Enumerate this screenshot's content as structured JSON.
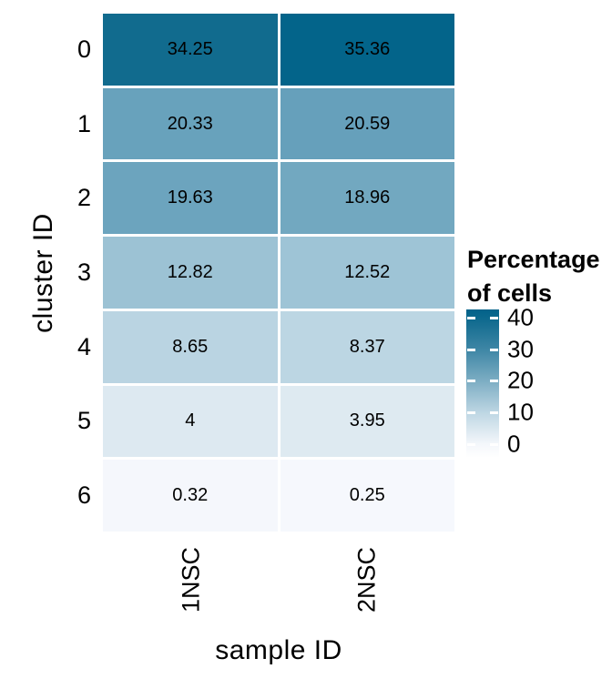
{
  "figure": {
    "background": "#ffffff",
    "text_color": "#000000"
  },
  "chart_data": {
    "type": "heatmap",
    "title": "",
    "xlabel": "sample ID",
    "ylabel": "cluster ID",
    "x_categories": [
      "1NSC",
      "2NSC"
    ],
    "y_categories": [
      "0",
      "1",
      "2",
      "3",
      "4",
      "5",
      "6"
    ],
    "series": [
      {
        "name": "1NSC",
        "values": [
          34.25,
          20.33,
          19.63,
          12.82,
          8.65,
          4,
          0.32
        ]
      },
      {
        "name": "2NSC",
        "values": [
          35.36,
          20.59,
          18.96,
          12.52,
          8.37,
          3.95,
          0.25
        ]
      }
    ],
    "cell_labels": [
      [
        "34.25",
        "35.36"
      ],
      [
        "20.33",
        "20.59"
      ],
      [
        "19.63",
        "18.96"
      ],
      [
        "12.82",
        "12.52"
      ],
      [
        "8.65",
        "8.37"
      ],
      [
        "4",
        "3.95"
      ],
      [
        "0.32",
        "0.25"
      ]
    ],
    "cell_colors": [
      [
        "#116b8e",
        "#03648a"
      ],
      [
        "#68a2bc",
        "#66a0bb"
      ],
      [
        "#6ca4be",
        "#72a8c0"
      ],
      [
        "#9cc2d4",
        "#9ec4d6"
      ],
      [
        "#bad4e2",
        "#bcd6e3"
      ],
      [
        "#dde9f1",
        "#deeaf1"
      ],
      [
        "#f5f7fc",
        "#f6f8fd"
      ]
    ],
    "value_range": [
      0,
      40
    ],
    "grid_lines": false,
    "legend": {
      "position": "right",
      "title_lines": [
        "Percentage",
        "of cells"
      ],
      "tick_labels": [
        "40",
        "30",
        "20",
        "10",
        "0"
      ],
      "gradient_low": "#ffffff",
      "gradient_high": "#02628a",
      "gradient_stops": [
        {
          "color": "#ffffff",
          "pos": 0
        },
        {
          "color": "#f4f7fb",
          "pos": 9.2
        },
        {
          "color": "#bdd6e3",
          "pos": 30.7
        },
        {
          "color": "#7cadc3",
          "pos": 52
        },
        {
          "color": "#3e86a5",
          "pos": 73
        },
        {
          "color": "#0c688d",
          "pos": 94.5
        },
        {
          "color": "#02628a",
          "pos": 100
        }
      ]
    }
  }
}
